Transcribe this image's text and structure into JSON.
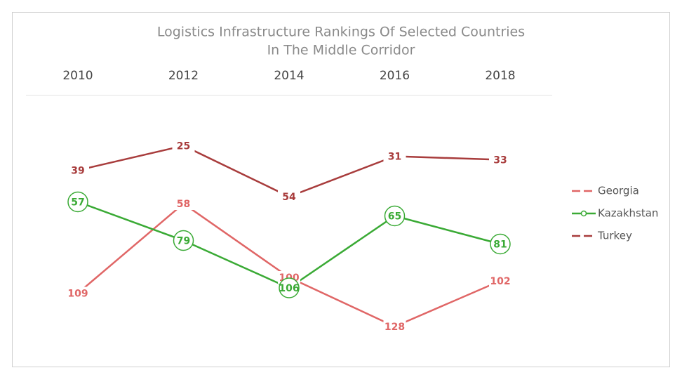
{
  "chart_data": {
    "type": "line",
    "title": [
      "Logistics Infrastructure Rankings Of Selected Countries",
      "In The Middle Corridor"
    ],
    "categories": [
      "2010",
      "2012",
      "2014",
      "2016",
      "2018"
    ],
    "ylim": [
      0,
      140
    ],
    "y_reversed": true,
    "legend": "right",
    "series": [
      {
        "name": "Georgia",
        "color": "#e06666",
        "values": [
          109,
          58,
          100,
          128,
          102
        ]
      },
      {
        "name": "Kazakhstan",
        "color": "#3aaa35",
        "marker": "circle",
        "values": [
          57,
          79,
          106,
          65,
          81
        ]
      },
      {
        "name": "Turkey",
        "color": "#a83c3c",
        "values": [
          39,
          25,
          54,
          31,
          33
        ]
      }
    ]
  }
}
